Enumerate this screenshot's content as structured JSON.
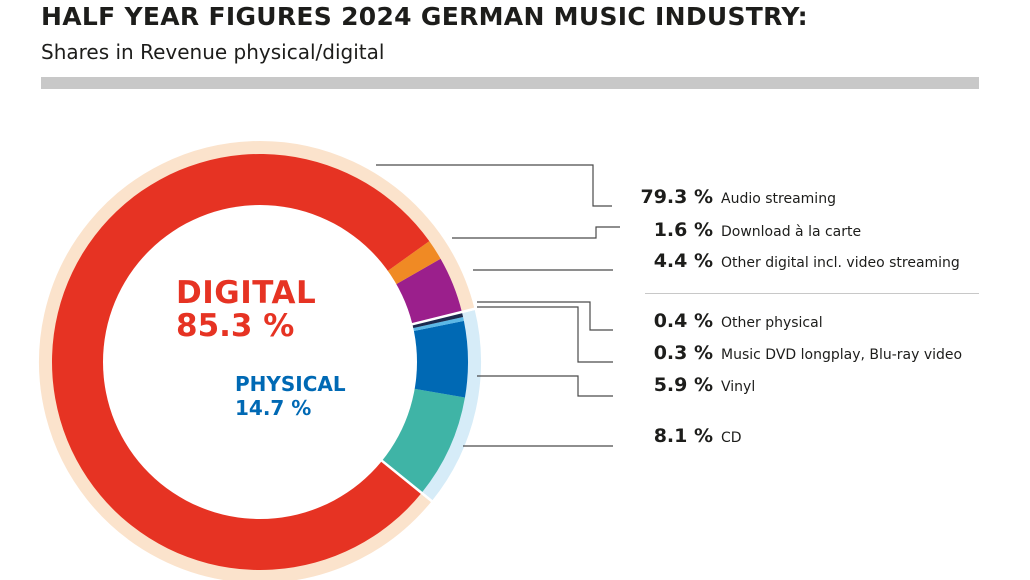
{
  "header": {
    "title": "HALF YEAR FIGURES 2024 GERMAN MUSIC INDUSTRY:",
    "subtitle": "Shares in Revenue physical/digital"
  },
  "center": {
    "digital_label": "DIGITAL",
    "digital_value": "85.3 %",
    "physical_label": "PHYSICAL",
    "physical_value": "14.7 %"
  },
  "colors": {
    "digital_ring": "#fbe3cc",
    "physical_ring": "#d6ecf8",
    "digital_text": "#e63323",
    "physical_text": "#0069b4"
  },
  "legend": [
    {
      "value": "79.3 %",
      "label": "Audio streaming"
    },
    {
      "value": "1.6 %",
      "label": "Download à la carte"
    },
    {
      "value": "4.4 %",
      "label": "Other digital incl. video streaming"
    },
    {
      "value": "0.4 %",
      "label": "Other physical"
    },
    {
      "value": "0.3 %",
      "label": "Music DVD longplay, Blu-ray video"
    },
    {
      "value": "5.9 %",
      "label": "Vinyl"
    },
    {
      "value": "8.1 %",
      "label": "CD"
    }
  ],
  "chart_data": {
    "type": "pie",
    "variant": "donut",
    "title": "HALF YEAR FIGURES 2024 GERMAN MUSIC INDUSTRY:",
    "subtitle": "Shares in Revenue physical/digital",
    "unit": "%",
    "groups": [
      {
        "name": "DIGITAL",
        "value": 85.3,
        "color": "#fbe3cc"
      },
      {
        "name": "PHYSICAL",
        "value": 14.7,
        "color": "#d6ecf8"
      }
    ],
    "slices": [
      {
        "name": "Audio streaming",
        "value": 79.3,
        "group": "DIGITAL",
        "color": "#e63323"
      },
      {
        "name": "Download à la carte",
        "value": 1.6,
        "group": "DIGITAL",
        "color": "#f08a24"
      },
      {
        "name": "Other digital incl. video streaming",
        "value": 4.4,
        "group": "DIGITAL",
        "color": "#9b1f8c"
      },
      {
        "name": "Other physical",
        "value": 0.4,
        "group": "PHYSICAL",
        "color": "#1b2a4e"
      },
      {
        "name": "Music DVD longplay, Blu-ray video",
        "value": 0.3,
        "group": "PHYSICAL",
        "color": "#5cb8e6"
      },
      {
        "name": "Vinyl",
        "value": 5.9,
        "group": "PHYSICAL",
        "color": "#0069b4"
      },
      {
        "name": "CD",
        "value": 8.1,
        "group": "PHYSICAL",
        "color": "#3fb4a6"
      }
    ]
  }
}
